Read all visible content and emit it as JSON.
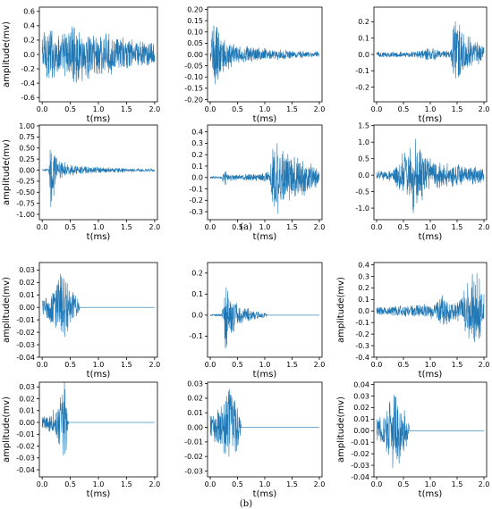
{
  "figure": {
    "caption_a": "(a)",
    "caption_b": "(b)",
    "line_color": "#1f77b4"
  },
  "chart_data": [
    {
      "type": "line",
      "panel": "(a) row 1 col 1",
      "xlabel": "t(ms)",
      "ylabel": "amplitude(mv)",
      "xlim": [
        -0.05,
        2.05
      ],
      "ylim": [
        -0.66,
        0.66
      ],
      "x_ticks": [
        0.0,
        0.5,
        1.0,
        1.5,
        2.0
      ],
      "y_ticks": [
        -0.6,
        -0.4,
        -0.2,
        0.0,
        0.2,
        0.4,
        0.6
      ],
      "envelope": {
        "t": [
          0.0,
          0.1,
          0.2,
          0.3,
          0.4,
          0.5,
          0.6,
          0.8,
          1.0,
          1.2,
          1.4,
          1.6,
          1.8,
          1.95
        ],
        "amp": [
          0.42,
          0.5,
          0.44,
          0.3,
          0.35,
          0.52,
          0.42,
          0.38,
          0.36,
          0.3,
          0.28,
          0.25,
          0.2,
          0.18
        ]
      }
    },
    {
      "type": "line",
      "panel": "(a) row 1 col 2",
      "xlabel": "t(ms)",
      "ylabel": "",
      "xlim": [
        -0.05,
        2.05
      ],
      "ylim": [
        -0.21,
        0.21
      ],
      "x_ticks": [
        0.0,
        0.5,
        1.0,
        1.5,
        2.0
      ],
      "y_ticks": [
        -0.2,
        -0.15,
        -0.1,
        -0.05,
        0.0,
        0.05,
        0.1,
        0.15,
        0.2
      ],
      "envelope": {
        "t": [
          0.0,
          0.03,
          0.06,
          0.1,
          0.2,
          0.35,
          0.5,
          0.7,
          1.0,
          1.3,
          1.6,
          1.95
        ],
        "amp": [
          0.02,
          0.12,
          0.19,
          0.17,
          0.1,
          0.07,
          0.05,
          0.04,
          0.03,
          0.025,
          0.02,
          0.015
        ]
      }
    },
    {
      "type": "line",
      "panel": "(a) row 1 col 3",
      "xlabel": "t(ms)",
      "ylabel": "",
      "xlim": [
        -0.05,
        2.05
      ],
      "ylim": [
        -0.29,
        0.29
      ],
      "x_ticks": [
        0.0,
        0.5,
        1.0,
        1.5,
        2.0
      ],
      "y_ticks": [
        -0.2,
        -0.1,
        0.0,
        0.1,
        0.2
      ],
      "envelope": {
        "t": [
          0.0,
          0.4,
          0.8,
          0.95,
          1.05,
          1.2,
          1.38,
          1.42,
          1.5,
          1.6,
          1.75,
          1.95
        ],
        "amp": [
          0.02,
          0.02,
          0.025,
          0.05,
          0.045,
          0.02,
          0.03,
          0.26,
          0.22,
          0.17,
          0.12,
          0.06
        ]
      }
    },
    {
      "type": "line",
      "panel": "(a) row 2 col 1",
      "xlabel": "t(ms)",
      "ylabel": "amplitude(mv)",
      "xlim": [
        -0.05,
        2.05
      ],
      "ylim": [
        -1.12,
        1.02
      ],
      "x_ticks": [
        0.0,
        0.5,
        1.0,
        1.5,
        2.0
      ],
      "y_ticks": [
        -1.0,
        -0.75,
        -0.5,
        -0.25,
        0.0,
        0.25,
        0.5,
        0.75,
        1.0
      ],
      "envelope": {
        "t": [
          0.0,
          0.12,
          0.15,
          0.18,
          0.25,
          0.35,
          0.5,
          0.8,
          1.2,
          1.6,
          1.95
        ],
        "amp": [
          0.02,
          0.03,
          0.98,
          0.75,
          0.4,
          0.22,
          0.14,
          0.1,
          0.07,
          0.05,
          0.04
        ]
      }
    },
    {
      "type": "line",
      "panel": "(a) row 2 col 2",
      "xlabel": "t(ms)",
      "ylabel": "",
      "xlim": [
        -0.05,
        2.05
      ],
      "ylim": [
        -0.37,
        0.46
      ],
      "x_ticks": [
        0.0,
        0.5,
        1.0,
        1.5,
        2.0
      ],
      "y_ticks": [
        -0.3,
        -0.2,
        -0.1,
        0.0,
        0.1,
        0.2,
        0.3,
        0.4
      ],
      "envelope": {
        "t": [
          0.0,
          0.2,
          0.28,
          0.32,
          0.5,
          0.9,
          1.1,
          1.15,
          1.3,
          1.5,
          1.7,
          1.95
        ],
        "amp": [
          0.01,
          0.01,
          0.09,
          0.03,
          0.03,
          0.04,
          0.06,
          0.38,
          0.3,
          0.22,
          0.18,
          0.1
        ]
      }
    },
    {
      "type": "line",
      "panel": "(a) row 2 col 3",
      "xlabel": "t(ms)",
      "ylabel": "",
      "xlim": [
        -0.05,
        2.05
      ],
      "ylim": [
        -1.35,
        1.52
      ],
      "x_ticks": [
        0.0,
        0.5,
        1.0,
        1.5,
        2.0
      ],
      "y_ticks": [
        -1.0,
        -0.5,
        0.0,
        0.5,
        1.0,
        1.5
      ],
      "envelope": {
        "t": [
          0.0,
          0.3,
          0.45,
          0.6,
          0.7,
          0.85,
          1.0,
          1.2,
          1.5,
          1.8,
          1.95
        ],
        "amp": [
          0.15,
          0.2,
          0.6,
          1.2,
          1.35,
          0.9,
          0.55,
          0.45,
          0.35,
          0.3,
          0.25
        ]
      }
    },
    {
      "type": "line",
      "panel": "(b) row 1 col 1",
      "xlabel": "t(ms)",
      "ylabel": "amplitude(mv)",
      "xlim": [
        -0.05,
        2.05
      ],
      "ylim": [
        -0.04,
        0.036
      ],
      "x_ticks": [
        0.0,
        0.5,
        1.0,
        1.5,
        2.0
      ],
      "y_ticks": [
        -0.04,
        -0.03,
        -0.02,
        -0.01,
        0.0,
        0.01,
        0.02,
        0.03
      ],
      "envelope": {
        "t": [
          0.0,
          0.1,
          0.25,
          0.35,
          0.45,
          0.55,
          0.65,
          0.67,
          2.0
        ],
        "amp": [
          0.008,
          0.01,
          0.02,
          0.034,
          0.025,
          0.015,
          0.006,
          0.0,
          0.0
        ]
      }
    },
    {
      "type": "line",
      "panel": "(b) row 1 col 2",
      "xlabel": "t(ms)",
      "ylabel": "",
      "xlim": [
        -0.05,
        2.05
      ],
      "ylim": [
        -0.2,
        0.25
      ],
      "x_ticks": [
        0.0,
        0.5,
        1.0,
        1.5,
        2.0
      ],
      "y_ticks": [
        -0.1,
        0.0,
        0.1,
        0.2
      ],
      "envelope": {
        "t": [
          0.0,
          0.2,
          0.25,
          0.28,
          0.35,
          0.5,
          0.75,
          1.0,
          1.05,
          2.0
        ],
        "amp": [
          0.003,
          0.005,
          0.05,
          0.23,
          0.12,
          0.06,
          0.03,
          0.015,
          0.0,
          0.0
        ]
      }
    },
    {
      "type": "line",
      "panel": "(b) row 1 col 3",
      "xlabel": "t(ms)",
      "ylabel": "amplitude(mv)",
      "xlim": [
        -0.05,
        2.05
      ],
      "ylim": [
        -0.4,
        0.42
      ],
      "x_ticks": [
        0.0,
        0.5,
        1.0,
        1.5,
        2.0
      ],
      "y_ticks": [
        -0.4,
        -0.3,
        -0.2,
        -0.1,
        0.0,
        0.1,
        0.2,
        0.3,
        0.4
      ],
      "envelope": {
        "t": [
          0.0,
          0.4,
          0.8,
          1.1,
          1.2,
          1.3,
          1.5,
          1.7,
          1.8,
          1.9,
          1.98
        ],
        "amp": [
          0.04,
          0.05,
          0.06,
          0.08,
          0.2,
          0.12,
          0.08,
          0.25,
          0.38,
          0.33,
          0.2
        ]
      }
    },
    {
      "type": "line",
      "panel": "(b) row 2 col 1",
      "xlabel": "t(ms)",
      "ylabel": "amplitude(mv)",
      "xlim": [
        -0.05,
        2.05
      ],
      "ylim": [
        -0.046,
        0.034
      ],
      "x_ticks": [
        0.0,
        0.5,
        1.0,
        1.5,
        2.0
      ],
      "y_ticks": [
        -0.04,
        -0.03,
        -0.02,
        -0.01,
        0.0,
        0.01,
        0.02,
        0.03
      ],
      "envelope": {
        "t": [
          0.0,
          0.1,
          0.25,
          0.35,
          0.4,
          0.45,
          0.47,
          2.0
        ],
        "amp": [
          0.006,
          0.008,
          0.015,
          0.032,
          0.045,
          0.012,
          0.0,
          0.0
        ]
      }
    },
    {
      "type": "line",
      "panel": "(b) row 2 col 2",
      "xlabel": "t(ms)",
      "ylabel": "",
      "xlim": [
        -0.05,
        2.05
      ],
      "ylim": [
        -0.034,
        0.031
      ],
      "x_ticks": [
        0.0,
        0.5,
        1.0,
        1.5,
        2.0
      ],
      "y_ticks": [
        -0.03,
        -0.02,
        -0.01,
        0.0,
        0.01,
        0.02,
        0.03
      ],
      "envelope": {
        "t": [
          0.0,
          0.1,
          0.25,
          0.35,
          0.45,
          0.55,
          0.57,
          2.0
        ],
        "amp": [
          0.01,
          0.012,
          0.02,
          0.03,
          0.025,
          0.012,
          0.0,
          0.0
        ]
      }
    },
    {
      "type": "line",
      "panel": "(b) row 2 col 3",
      "xlabel": "t(ms)",
      "ylabel": "amplitude(mv)",
      "xlim": [
        -0.05,
        2.05
      ],
      "ylim": [
        -0.04,
        0.042
      ],
      "x_ticks": [
        0.0,
        0.5,
        1.0,
        1.5,
        2.0
      ],
      "y_ticks": [
        -0.04,
        -0.03,
        -0.02,
        -0.01,
        0.0,
        0.01,
        0.02,
        0.03,
        0.04
      ],
      "envelope": {
        "t": [
          0.0,
          0.1,
          0.25,
          0.35,
          0.45,
          0.55,
          0.6,
          0.62,
          2.0
        ],
        "amp": [
          0.012,
          0.015,
          0.03,
          0.038,
          0.03,
          0.02,
          0.01,
          0.0,
          0.0
        ]
      }
    }
  ]
}
